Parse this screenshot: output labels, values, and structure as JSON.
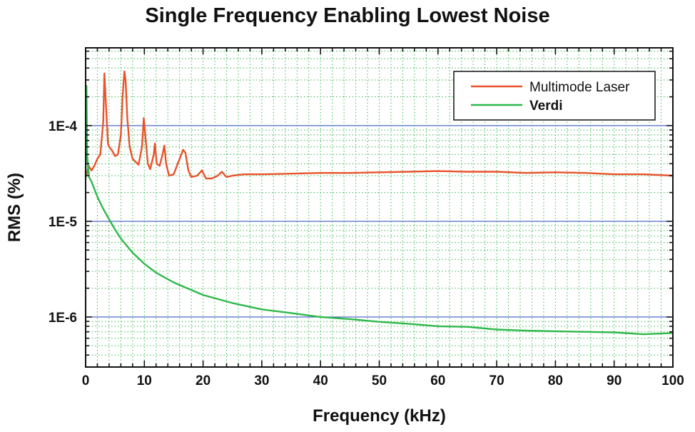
{
  "chart_data": {
    "type": "line",
    "title": "Single Frequency Enabling Lowest Noise",
    "xlabel": "Frequency (kHz)",
    "ylabel": "RMS (%)",
    "xlim": [
      0,
      100
    ],
    "ylim": [
      3e-07,
      0.00065
    ],
    "y_scale": "log",
    "x_ticks": [
      0,
      10,
      20,
      30,
      40,
      50,
      60,
      70,
      80,
      90,
      100
    ],
    "x_tick_labels": [
      "0",
      "10",
      "20",
      "30",
      "40",
      "50",
      "60",
      "70",
      "80",
      "90",
      "100"
    ],
    "y_ticks": [
      1e-06,
      1e-05,
      0.0001
    ],
    "y_tick_labels": [
      "1E-6",
      "1E-5",
      "1E-4"
    ],
    "grid": {
      "major": "solid",
      "minor": "dotted"
    },
    "legend_position": "top-right",
    "colors": {
      "major_grid": "#3a5bbf",
      "minor_grid": "#39b54a",
      "frame": "#111111"
    },
    "series": [
      {
        "name": "Multimode Laser",
        "color": "#e8532b",
        "x": [
          0,
          0.3,
          0.5,
          1,
          1.5,
          2,
          2.5,
          3,
          3.2,
          3.5,
          3.8,
          4,
          4.5,
          5,
          5.5,
          6,
          6.3,
          6.6,
          6.8,
          7.1,
          7.5,
          8,
          9,
          9.6,
          9.9,
          10.2,
          10.6,
          11,
          11.6,
          11.8,
          12.1,
          12.6,
          13.1,
          13.4,
          13.7,
          14.2,
          15,
          16,
          16.6,
          17,
          17.5,
          18,
          19,
          19.8,
          20.5,
          21.5,
          22.5,
          23.2,
          24,
          25,
          27,
          30,
          35,
          40,
          45,
          50,
          55,
          60,
          65,
          70,
          75,
          80,
          85,
          90,
          95,
          100
        ],
        "values": [
          2.9e-05,
          3.3e-05,
          3.8e-05,
          3.4e-05,
          3.8e-05,
          4.5e-05,
          5e-05,
          0.00011,
          0.00035,
          0.00015,
          6.5e-05,
          6e-05,
          5.5e-05,
          4.8e-05,
          5e-05,
          8e-05,
          0.0002,
          0.00037,
          0.0003,
          0.00012,
          6e-05,
          4.5e-05,
          3.9e-05,
          6e-05,
          0.00012,
          7.5e-05,
          4e-05,
          3.5e-05,
          5e-05,
          6.5e-05,
          4e-05,
          3.8e-05,
          5e-05,
          6.2e-05,
          4e-05,
          3e-05,
          3.1e-05,
          4.5e-05,
          5.6e-05,
          5.2e-05,
          3.4e-05,
          2.9e-05,
          3e-05,
          3.4e-05,
          2.8e-05,
          2.8e-05,
          3e-05,
          3.3e-05,
          2.9e-05,
          3e-05,
          3.1e-05,
          3.1e-05,
          3.15e-05,
          3.2e-05,
          3.2e-05,
          3.25e-05,
          3.3e-05,
          3.35e-05,
          3.3e-05,
          3.3e-05,
          3.2e-05,
          3.25e-05,
          3.2e-05,
          3.1e-05,
          3.1e-05,
          3e-05
        ]
      },
      {
        "name": "Verdi",
        "color": "#2eb84b",
        "x": [
          0,
          0.15,
          0.25,
          0.4,
          0.6,
          1,
          2,
          3,
          4,
          5,
          6,
          8,
          10,
          12,
          15,
          20,
          25,
          30,
          35,
          40,
          45,
          50,
          55,
          60,
          65,
          70,
          75,
          80,
          85,
          90,
          95,
          100
        ],
        "values": [
          2.8e-05,
          0.00026,
          5e-05,
          3.8e-05,
          2.9e-05,
          2.6e-05,
          1.8e-05,
          1.35e-05,
          1.05e-05,
          8.2e-06,
          6.6e-06,
          4.7e-06,
          3.6e-06,
          2.9e-06,
          2.3e-06,
          1.7e-06,
          1.4e-06,
          1.2e-06,
          1.1e-06,
          1e-06,
          9.5e-07,
          8.9e-07,
          8.5e-07,
          8e-07,
          7.9e-07,
          7.4e-07,
          7.2e-07,
          7.1e-07,
          7e-07,
          6.9e-07,
          6.6e-07,
          6.8e-07
        ]
      }
    ]
  }
}
